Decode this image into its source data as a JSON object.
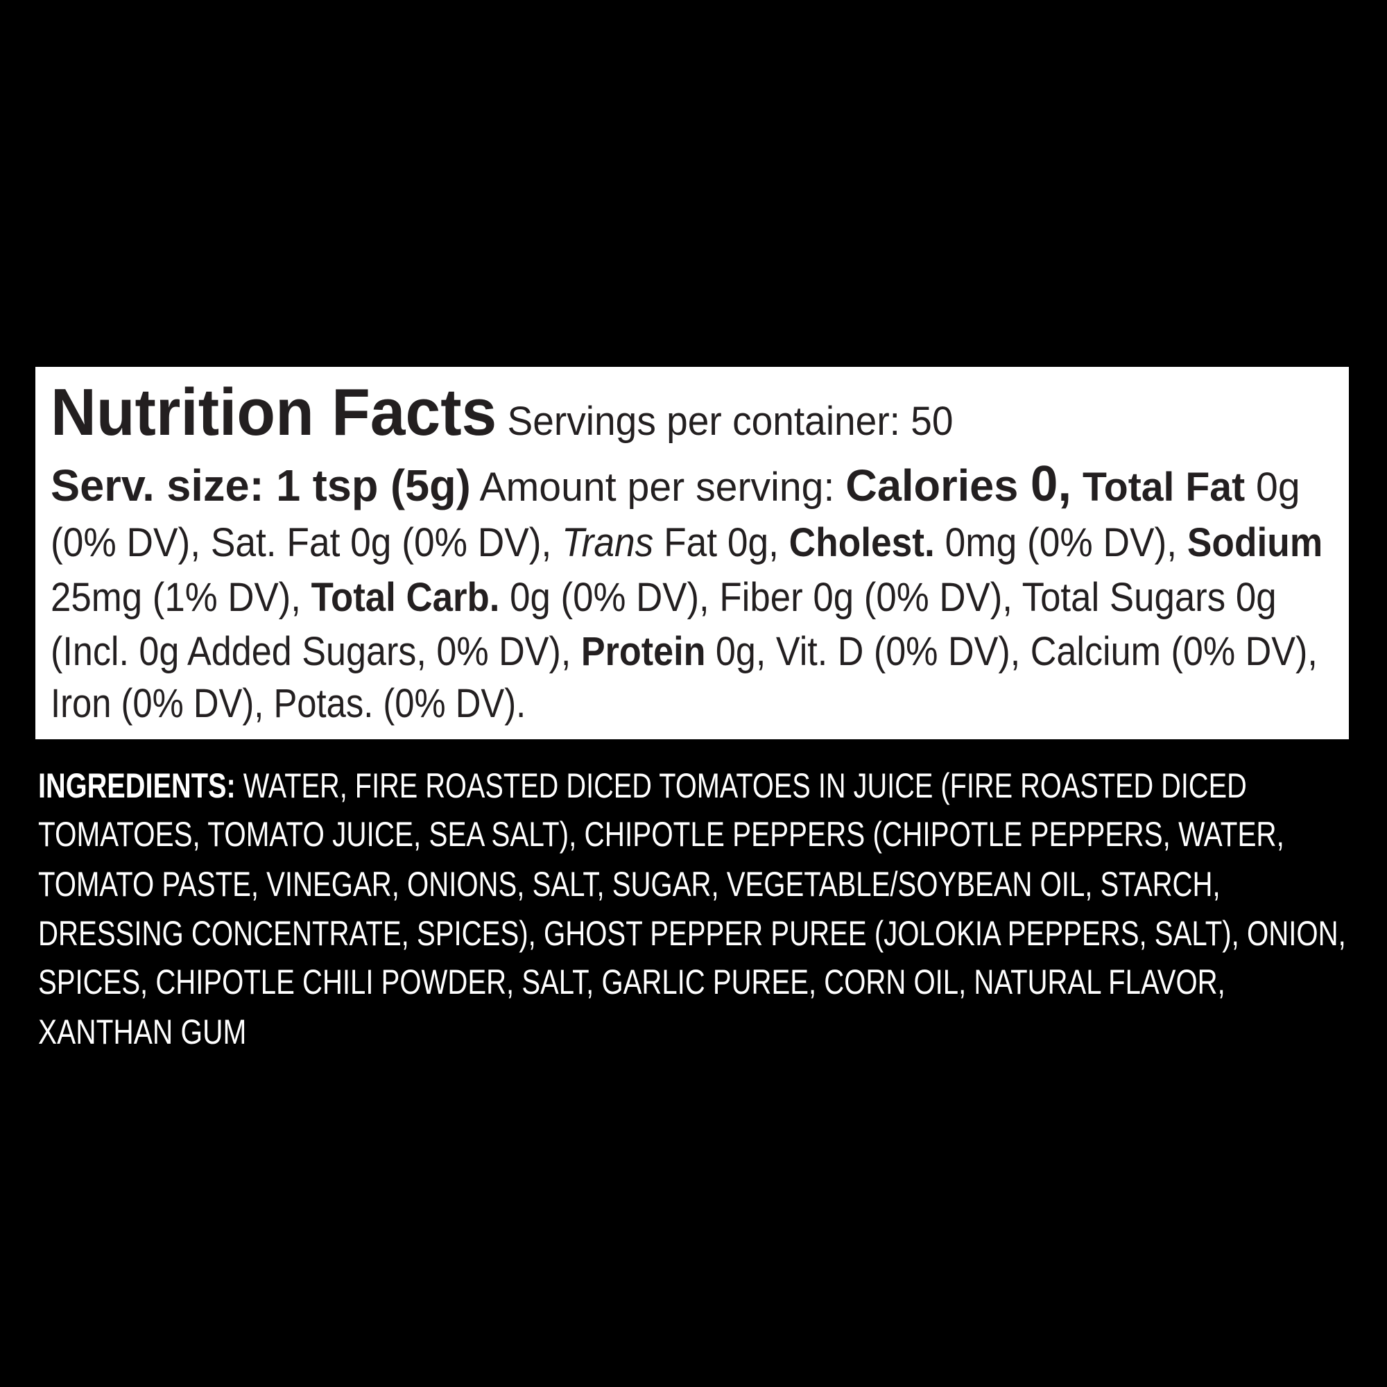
{
  "nutrition": {
    "lines": [
      [
        {
          "t": "Nutrition Facts",
          "s": "title"
        },
        {
          "t": " Servings per container: 50",
          "s": ""
        }
      ],
      [
        {
          "t": "Serv. size: 1 tsp (5g)",
          "s": "mid"
        },
        {
          "t": " Amount per serving: ",
          "s": ""
        },
        {
          "t": "Calories ",
          "s": "mid"
        },
        {
          "t": "0,",
          "s": "big"
        },
        {
          "t": " Total Fat",
          "s": "b"
        },
        {
          "t": " 0g",
          "s": ""
        }
      ],
      [
        {
          "t": "(0% DV), Sat. Fat 0g (0% DV), ",
          "s": ""
        },
        {
          "t": "Trans",
          "s": "i"
        },
        {
          "t": " Fat 0g, ",
          "s": ""
        },
        {
          "t": "Cholest.",
          "s": "b"
        },
        {
          "t": " 0mg (0% DV), ",
          "s": ""
        },
        {
          "t": "Sodium",
          "s": "b"
        }
      ],
      [
        {
          "t": "25mg (1% DV), ",
          "s": ""
        },
        {
          "t": "Total Carb.",
          "s": "b"
        },
        {
          "t": " 0g (0% DV), Fiber 0g (0% DV), Total Sugars 0g",
          "s": ""
        }
      ],
      [
        {
          "t": "(Incl. 0g Added Sugars, 0% DV), ",
          "s": ""
        },
        {
          "t": "Protein",
          "s": "b"
        },
        {
          "t": " 0g, Vit. D (0% DV), Calcium (0% DV),",
          "s": ""
        }
      ],
      [
        {
          "t": "Iron (0% DV), Potas. (0% DV).",
          "s": ""
        }
      ]
    ]
  },
  "ingredients": {
    "lines": [
      [
        {
          "t": "INGREDIENTS:",
          "s": "b"
        },
        {
          "t": " WATER, FIRE ROASTED DICED TOMATOES IN JUICE (FIRE ROASTED DICED",
          "s": ""
        }
      ],
      [
        {
          "t": "TOMATOES, TOMATO JUICE, SEA SALT), CHIPOTLE PEPPERS (CHIPOTLE PEPPERS, WATER,",
          "s": ""
        }
      ],
      [
        {
          "t": "TOMATO PASTE, VINEGAR, ONIONS, SALT, SUGAR, VEGETABLE/SOYBEAN OIL, STARCH,",
          "s": ""
        }
      ],
      [
        {
          "t": "DRESSING CONCENTRATE, SPICES), GHOST PEPPER PUREE (JOLOKIA PEPPERS, SALT), ONION,",
          "s": ""
        }
      ],
      [
        {
          "t": "SPICES, CHIPOTLE CHILI POWDER, SALT, GARLIC PUREE, CORN OIL, NATURAL FLAVOR,",
          "s": ""
        }
      ],
      [
        {
          "t": "XANTHAN GUM",
          "s": ""
        }
      ]
    ]
  },
  "colors": {
    "background": "#000000",
    "panel": "#ffffff",
    "panel_text": "#231f20",
    "ingredients_text": "#ffffff"
  }
}
